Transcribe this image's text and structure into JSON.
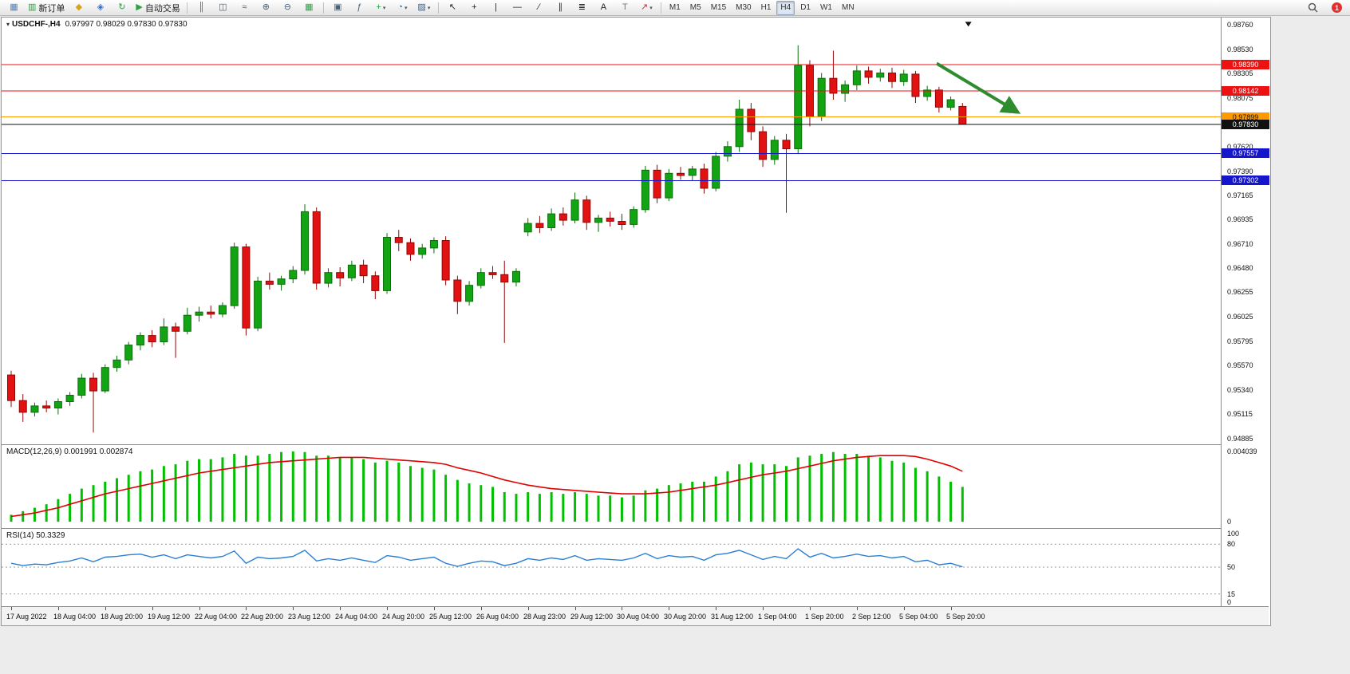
{
  "toolbar": {
    "buttons": [
      {
        "name": "new-chart",
        "type": "icon"
      },
      {
        "name": "new-order",
        "type": "icon-label",
        "label": "新订单"
      },
      {
        "name": "profiles",
        "type": "icon"
      },
      {
        "name": "market-watch",
        "type": "icon"
      },
      {
        "name": "refresh",
        "type": "icon"
      },
      {
        "name": "auto-trading",
        "type": "icon-label",
        "label": "自动交易"
      },
      {
        "type": "separator"
      },
      {
        "name": "bar-chart",
        "type": "icon"
      },
      {
        "name": "candlestick-chart",
        "type": "icon"
      },
      {
        "name": "line-chart",
        "type": "icon"
      },
      {
        "name": "zoom-in",
        "type": "icon"
      },
      {
        "name": "zoom-out",
        "type": "icon"
      },
      {
        "name": "tile-windows",
        "type": "icon"
      },
      {
        "type": "separator"
      },
      {
        "name": "auto-arrange",
        "type": "icon"
      },
      {
        "name": "indicator-list",
        "type": "icon"
      },
      {
        "name": "add-indicator",
        "type": "icon",
        "caret": true
      },
      {
        "name": "periods",
        "type": "icon",
        "caret": true
      },
      {
        "name": "templates",
        "type": "icon",
        "caret": true
      },
      {
        "type": "separator"
      },
      {
        "name": "cursor",
        "type": "icon"
      },
      {
        "name": "crosshair",
        "type": "icon"
      },
      {
        "name": "vertical-line",
        "type": "icon"
      },
      {
        "name": "horizontal-line",
        "type": "icon"
      },
      {
        "name": "trendline",
        "type": "icon"
      },
      {
        "name": "equidistant-channel",
        "type": "icon"
      },
      {
        "name": "fibonacci",
        "type": "icon"
      },
      {
        "name": "text",
        "type": "icon"
      },
      {
        "name": "text-label",
        "type": "icon"
      },
      {
        "name": "arrow-objects",
        "type": "icon",
        "caret": true
      },
      {
        "type": "separator"
      }
    ],
    "timeframes": {
      "items": [
        "M1",
        "M5",
        "M15",
        "M30",
        "H1",
        "H4",
        "D1",
        "W1",
        "MN"
      ],
      "active": "H4"
    },
    "notification_count": "1"
  },
  "chart": {
    "title": "USDCHF-,H4",
    "ohlc_text": "0.97997 0.98029 0.97830 0.97830"
  },
  "chart_data": {
    "type": "candlestick",
    "symbol": "USDCHF-",
    "period": "H4",
    "price_axis": {
      "min": 0.9483,
      "max": 0.9883,
      "labels": [
        "0.98760",
        "0.98530",
        "0.98305",
        "0.98075",
        "0.97845",
        "0.97620",
        "0.97390",
        "0.97165",
        "0.96935",
        "0.96710",
        "0.96480",
        "0.96255",
        "0.96025",
        "0.95795",
        "0.95570",
        "0.95340",
        "0.95115",
        "0.94885"
      ]
    },
    "candles": [
      [
        0.9548,
        0.9552,
        0.9518,
        0.9524
      ],
      [
        0.9524,
        0.953,
        0.9504,
        0.9513
      ],
      [
        0.9513,
        0.9522,
        0.9509,
        0.9519
      ],
      [
        0.9519,
        0.9524,
        0.9513,
        0.9517
      ],
      [
        0.9517,
        0.9526,
        0.9511,
        0.9523
      ],
      [
        0.9523,
        0.9532,
        0.9519,
        0.9529
      ],
      [
        0.9529,
        0.9549,
        0.9526,
        0.9545
      ],
      [
        0.9545,
        0.955,
        0.9494,
        0.9533
      ],
      [
        0.9533,
        0.9558,
        0.9531,
        0.9555
      ],
      [
        0.9555,
        0.9566,
        0.9551,
        0.9562
      ],
      [
        0.9562,
        0.9579,
        0.9558,
        0.9576
      ],
      [
        0.9576,
        0.9588,
        0.9571,
        0.9585
      ],
      [
        0.9585,
        0.959,
        0.9574,
        0.9579
      ],
      [
        0.9579,
        0.9601,
        0.9576,
        0.9593
      ],
      [
        0.9593,
        0.9597,
        0.9564,
        0.9589
      ],
      [
        0.9589,
        0.9611,
        0.9586,
        0.9604
      ],
      [
        0.9604,
        0.9612,
        0.9598,
        0.9607
      ],
      [
        0.9607,
        0.9613,
        0.9601,
        0.9605
      ],
      [
        0.9605,
        0.9616,
        0.9602,
        0.9613
      ],
      [
        0.9613,
        0.9672,
        0.961,
        0.9668
      ],
      [
        0.9668,
        0.9671,
        0.9585,
        0.9592
      ],
      [
        0.9592,
        0.964,
        0.9589,
        0.9636
      ],
      [
        0.9636,
        0.9644,
        0.9628,
        0.9633
      ],
      [
        0.9633,
        0.9641,
        0.9627,
        0.9638
      ],
      [
        0.9638,
        0.965,
        0.9634,
        0.9646
      ],
      [
        0.9646,
        0.9708,
        0.9642,
        0.9701
      ],
      [
        0.9701,
        0.9705,
        0.9628,
        0.9634
      ],
      [
        0.9634,
        0.9648,
        0.963,
        0.9644
      ],
      [
        0.9644,
        0.9649,
        0.9631,
        0.9639
      ],
      [
        0.9639,
        0.9655,
        0.9636,
        0.9651
      ],
      [
        0.9651,
        0.9656,
        0.9634,
        0.9641
      ],
      [
        0.9641,
        0.9645,
        0.9619,
        0.9627
      ],
      [
        0.9627,
        0.9681,
        0.9624,
        0.9677
      ],
      [
        0.9677,
        0.9684,
        0.9664,
        0.9672
      ],
      [
        0.9672,
        0.9676,
        0.9655,
        0.9661
      ],
      [
        0.9661,
        0.9671,
        0.9657,
        0.9667
      ],
      [
        0.9667,
        0.9677,
        0.9662,
        0.9674
      ],
      [
        0.9674,
        0.9678,
        0.9632,
        0.9637
      ],
      [
        0.9637,
        0.9641,
        0.9605,
        0.9617
      ],
      [
        0.9617,
        0.9636,
        0.9613,
        0.9632
      ],
      [
        0.9632,
        0.9648,
        0.9629,
        0.9644
      ],
      [
        0.9644,
        0.965,
        0.9638,
        0.9642
      ],
      [
        0.9642,
        0.9655,
        0.9578,
        0.9635
      ],
      [
        0.9635,
        0.9648,
        0.9631,
        0.9645
      ],
      [
        0.9682,
        0.9695,
        0.9678,
        0.969
      ],
      [
        0.969,
        0.9697,
        0.9681,
        0.9686
      ],
      [
        0.9686,
        0.9704,
        0.9683,
        0.9699
      ],
      [
        0.9699,
        0.9705,
        0.9688,
        0.9693
      ],
      [
        0.9693,
        0.9719,
        0.969,
        0.9712
      ],
      [
        0.9712,
        0.9716,
        0.9684,
        0.9691
      ],
      [
        0.9691,
        0.9698,
        0.9682,
        0.9695
      ],
      [
        0.9695,
        0.9701,
        0.9687,
        0.9692
      ],
      [
        0.9692,
        0.9699,
        0.9684,
        0.9689
      ],
      [
        0.9689,
        0.9706,
        0.9686,
        0.9703
      ],
      [
        0.9703,
        0.9744,
        0.97,
        0.974
      ],
      [
        0.974,
        0.9745,
        0.9709,
        0.9714
      ],
      [
        0.9714,
        0.9741,
        0.9711,
        0.9737
      ],
      [
        0.9737,
        0.9743,
        0.9731,
        0.9735
      ],
      [
        0.9735,
        0.9744,
        0.973,
        0.9741
      ],
      [
        0.9741,
        0.9746,
        0.9718,
        0.9723
      ],
      [
        0.9723,
        0.9757,
        0.972,
        0.9753
      ],
      [
        0.9753,
        0.9767,
        0.9748,
        0.9762
      ],
      [
        0.9762,
        0.9806,
        0.9757,
        0.9797
      ],
      [
        0.9797,
        0.9803,
        0.9768,
        0.9776
      ],
      [
        0.9776,
        0.9781,
        0.9743,
        0.975
      ],
      [
        0.975,
        0.9772,
        0.9745,
        0.9768
      ],
      [
        0.9768,
        0.9774,
        0.97,
        0.976
      ],
      [
        0.976,
        0.9857,
        0.9755,
        0.9838
      ],
      [
        0.9838,
        0.9843,
        0.9781,
        0.979
      ],
      [
        0.979,
        0.9831,
        0.9786,
        0.9826
      ],
      [
        0.9826,
        0.9852,
        0.9806,
        0.9812
      ],
      [
        0.9812,
        0.9824,
        0.9804,
        0.982
      ],
      [
        0.982,
        0.9838,
        0.9815,
        0.9833
      ],
      [
        0.9833,
        0.9837,
        0.9821,
        0.9827
      ],
      [
        0.9827,
        0.9835,
        0.9823,
        0.9831
      ],
      [
        0.9831,
        0.9836,
        0.9817,
        0.9823
      ],
      [
        0.9823,
        0.9834,
        0.9819,
        0.983
      ],
      [
        0.983,
        0.9833,
        0.9803,
        0.9809
      ],
      [
        0.9809,
        0.9819,
        0.9805,
        0.9815
      ],
      [
        0.9815,
        0.9818,
        0.9794,
        0.9799
      ],
      [
        0.9799,
        0.9809,
        0.9796,
        0.9806
      ],
      [
        0.97997,
        0.98029,
        0.9783,
        0.9783
      ]
    ],
    "hlines": [
      {
        "name": "resistance-line-1",
        "price": 0.9839,
        "color": "#ee1111",
        "label": "0.98390"
      },
      {
        "name": "resistance-line-2",
        "price": 0.98142,
        "color": "#ee1111",
        "label": "0.98142"
      },
      {
        "name": "alert-line",
        "price": 0.97899,
        "color": "#ff9900",
        "label": "0.97899"
      },
      {
        "name": "bid-price-line",
        "price": 0.9783,
        "color": "#111111",
        "label": "0.97830"
      },
      {
        "name": "support-line-1",
        "price": 0.97557,
        "color": "#1515cc",
        "label": "0.97557"
      },
      {
        "name": "support-line-2",
        "price": 0.97302,
        "color": "#1515cc",
        "label": "0.97302"
      }
    ],
    "arrow": {
      "from_index": 78.8,
      "from_price": 0.984,
      "to_index": 85.6,
      "to_price": 0.9795,
      "color": "#2e8b2e"
    },
    "marker": {
      "index": 81.5,
      "price": 0.9879
    },
    "macd": {
      "label": "MACD(12,26,9)",
      "values_text": "0.001991 0.002874",
      "scale_max": 0.004039,
      "axis_labels": [
        {
          "text": "0.004039",
          "v": 0.004039
        },
        {
          "text": "0",
          "v": 0
        }
      ],
      "histogram": [
        0.0004,
        0.0006,
        0.0008,
        0.001,
        0.0013,
        0.0016,
        0.0019,
        0.0021,
        0.0023,
        0.0025,
        0.0027,
        0.0029,
        0.003,
        0.0032,
        0.0033,
        0.0035,
        0.0036,
        0.0036,
        0.0037,
        0.0039,
        0.0038,
        0.0038,
        0.0039,
        0.004,
        0.00404,
        0.004,
        0.0038,
        0.0038,
        0.0037,
        0.0037,
        0.0036,
        0.0034,
        0.0035,
        0.0034,
        0.0032,
        0.0031,
        0.003,
        0.0027,
        0.0024,
        0.0022,
        0.0021,
        0.002,
        0.0017,
        0.0016,
        0.0017,
        0.0016,
        0.0017,
        0.0016,
        0.0017,
        0.0016,
        0.0015,
        0.0015,
        0.0014,
        0.0015,
        0.0018,
        0.0019,
        0.0021,
        0.0022,
        0.0023,
        0.0023,
        0.0026,
        0.0029,
        0.0033,
        0.0034,
        0.0033,
        0.0033,
        0.0032,
        0.0037,
        0.0038,
        0.0039,
        0.004,
        0.0039,
        0.0039,
        0.0038,
        0.0037,
        0.0035,
        0.0034,
        0.0031,
        0.0029,
        0.0026,
        0.0023,
        0.002
      ],
      "signal_line": [
        0.0003,
        0.0004,
        0.0005,
        0.00065,
        0.0008,
        0.001,
        0.0012,
        0.0014,
        0.0016,
        0.00175,
        0.0019,
        0.00205,
        0.0022,
        0.00235,
        0.0025,
        0.00265,
        0.0028,
        0.0029,
        0.003,
        0.0031,
        0.0032,
        0.0033,
        0.0034,
        0.00345,
        0.0035,
        0.00355,
        0.0036,
        0.00365,
        0.0037,
        0.0037,
        0.0037,
        0.00365,
        0.0036,
        0.00355,
        0.0035,
        0.00345,
        0.0034,
        0.0033,
        0.0031,
        0.00295,
        0.0028,
        0.0026,
        0.0024,
        0.00225,
        0.0021,
        0.002,
        0.0019,
        0.00185,
        0.0018,
        0.00175,
        0.0017,
        0.00165,
        0.0016,
        0.0016,
        0.0016,
        0.00165,
        0.0017,
        0.0018,
        0.0019,
        0.002,
        0.0021,
        0.00225,
        0.0024,
        0.00255,
        0.0027,
        0.0028,
        0.0029,
        0.00305,
        0.0032,
        0.00335,
        0.0035,
        0.0036,
        0.0037,
        0.00375,
        0.0038,
        0.0038,
        0.0038,
        0.00375,
        0.0036,
        0.0034,
        0.0032,
        0.0029
      ]
    },
    "rsi": {
      "label": "RSI(14)",
      "value_text": "50.3329",
      "levels": [
        80,
        50,
        15
      ],
      "axis_labels": [
        {
          "text": "100",
          "v": 100
        },
        {
          "text": "80",
          "v": 80
        },
        {
          "text": "50",
          "v": 50
        },
        {
          "text": "15",
          "v": 15
        },
        {
          "text": "0",
          "v": 0
        }
      ],
      "line": [
        55,
        52,
        54,
        53,
        56,
        58,
        62,
        57,
        63,
        64,
        66,
        67,
        63,
        66,
        61,
        66,
        64,
        62,
        64,
        71,
        55,
        63,
        61,
        62,
        64,
        72,
        58,
        61,
        59,
        62,
        59,
        56,
        65,
        63,
        59,
        61,
        63,
        55,
        51,
        55,
        58,
        57,
        52,
        55,
        61,
        59,
        62,
        60,
        65,
        59,
        61,
        60,
        59,
        62,
        68,
        61,
        65,
        63,
        64,
        59,
        66,
        68,
        72,
        66,
        60,
        64,
        61,
        74,
        63,
        68,
        62,
        64,
        67,
        64,
        65,
        62,
        64,
        57,
        59,
        53,
        55,
        50.33
      ]
    },
    "time_axis": {
      "candles_per_label": 4,
      "labels": [
        "17 Aug 2022",
        "18 Aug 04:00",
        "18 Aug 20:00",
        "19 Aug 12:00",
        "22 Aug 04:00",
        "22 Aug 20:00",
        "23 Aug 12:00",
        "24 Aug 04:00",
        "24 Aug 20:00",
        "25 Aug 12:00",
        "26 Aug 04:00",
        "28 Aug 23:00",
        "29 Aug 12:00",
        "30 Aug 04:00",
        "30 Aug 20:00",
        "31 Aug 12:00",
        "1 Sep 04:00",
        "1 Sep 20:00",
        "2 Sep 12:00",
        "5 Sep 04:00",
        "5 Sep 20:00"
      ]
    }
  }
}
